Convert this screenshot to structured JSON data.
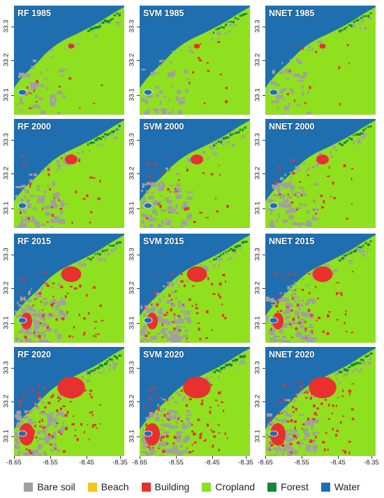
{
  "panels": [
    {
      "title": "RF 1985",
      "method": "RF",
      "year": 1985
    },
    {
      "title": "SVM 1985",
      "method": "SVM",
      "year": 1985
    },
    {
      "title": "NNET 1985",
      "method": "NNET",
      "year": 1985
    },
    {
      "title": "RF 2000",
      "method": "RF",
      "year": 2000
    },
    {
      "title": "SVM 2000",
      "method": "SVM",
      "year": 2000
    },
    {
      "title": "NNET 2000",
      "method": "NNET",
      "year": 2000
    },
    {
      "title": "RF 2015",
      "method": "RF",
      "year": 2015
    },
    {
      "title": "SVM 2015",
      "method": "SVM",
      "year": 2015
    },
    {
      "title": "NNET 2015",
      "method": "NNET",
      "year": 2015
    },
    {
      "title": "RF 2020",
      "method": "RF",
      "year": 2020
    },
    {
      "title": "SVM 2020",
      "method": "SVM",
      "year": 2020
    },
    {
      "title": "NNET 2020",
      "method": "NNET",
      "year": 2020
    }
  ],
  "y_ticks": [
    "33.3",
    "33.2",
    "33.1"
  ],
  "x_ticks": [
    "-8.65",
    "-8.55",
    "-8.45",
    "-8.35"
  ],
  "legend": [
    {
      "label": "Bare soil",
      "color": "#a0a0a0"
    },
    {
      "label": "Beach",
      "color": "#f5c518"
    },
    {
      "label": "Building",
      "color": "#e8312f"
    },
    {
      "label": "Cropland",
      "color": "#8fe01e"
    },
    {
      "label": "Forest",
      "color": "#13883a"
    },
    {
      "label": "Water",
      "color": "#1f6fb0"
    }
  ]
}
